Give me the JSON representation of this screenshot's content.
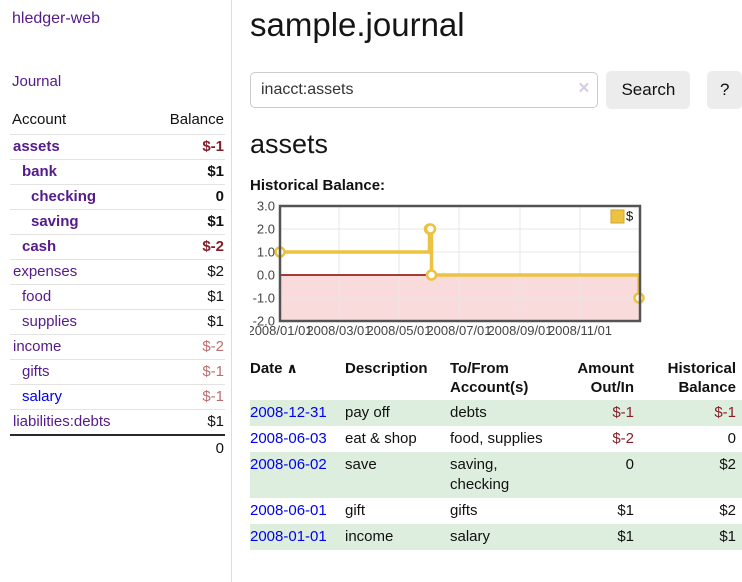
{
  "app": {
    "title": "hledger-web"
  },
  "sidebar": {
    "journal_link": "Journal",
    "accounts_header": {
      "account": "Account",
      "balance": "Balance"
    },
    "accounts": [
      {
        "label": "assets",
        "balance": "$-1",
        "depth": 1,
        "bold": true,
        "balance_style": "neg"
      },
      {
        "label": "bank",
        "balance": "$1",
        "depth": 2,
        "bold": true,
        "balance_style": ""
      },
      {
        "label": "checking",
        "balance": "0",
        "depth": 3,
        "bold": true,
        "balance_style": ""
      },
      {
        "label": "saving",
        "balance": "$1",
        "depth": 3,
        "bold": true,
        "balance_style": ""
      },
      {
        "label": "cash",
        "balance": "$-2",
        "depth": 2,
        "bold": true,
        "balance_style": "neg"
      },
      {
        "label": "expenses",
        "balance": "$2",
        "depth": 1,
        "bold": false,
        "balance_style": ""
      },
      {
        "label": "food",
        "balance": "$1",
        "depth": 2,
        "bold": false,
        "balance_style": ""
      },
      {
        "label": "supplies",
        "balance": "$1",
        "depth": 2,
        "bold": false,
        "balance_style": ""
      },
      {
        "label": "income",
        "balance": "$-2",
        "depth": 1,
        "bold": false,
        "balance_style": "neg-muted"
      },
      {
        "label": "gifts",
        "balance": "$-1",
        "depth": 2,
        "bold": false,
        "balance_style": "neg-muted"
      },
      {
        "label": "salary",
        "balance": "$-1",
        "depth": 2,
        "bold": false,
        "balance_style": "neg-muted",
        "link_style": "blue"
      },
      {
        "label": "liabilities:debts",
        "balance": "$1",
        "depth": 1,
        "bold": false,
        "balance_style": ""
      }
    ],
    "total": "0"
  },
  "main": {
    "title": "sample.journal",
    "search": {
      "value": "inacct:assets",
      "clear_icon": "×",
      "search_button": "Search",
      "help_button": "?"
    },
    "account_title": "assets",
    "chart_heading": "Historical Balance:"
  },
  "chart_data": {
    "type": "line",
    "step": true,
    "title": "Historical Balance",
    "series": [
      {
        "name": "$",
        "color": "#EDC240",
        "points": [
          [
            "2008-01-01",
            1
          ],
          [
            "2008-06-01",
            2
          ],
          [
            "2008-06-02",
            2
          ],
          [
            "2008-06-03",
            0
          ],
          [
            "2008-12-31",
            -1
          ]
        ]
      }
    ],
    "xlim": [
      "2008-01-01",
      "2009-01-01"
    ],
    "ylim": [
      -2,
      3
    ],
    "x_tick_dates": [
      "2008-01-01",
      "2008-03-01",
      "2008-05-01",
      "2008-07-01",
      "2008-09-01",
      "2008-11-01"
    ],
    "x_tick_labels": [
      "2008/01/01",
      "2008/03/01",
      "2008/05/01",
      "2008/07/01",
      "2008/09/01",
      "2008/11/01"
    ],
    "y_tick_values": [
      3,
      2,
      1,
      0,
      -1,
      -2
    ],
    "y_tick_labels": [
      "3.0",
      "2.0",
      "1.0",
      "0.0",
      "-1.0",
      "-2.0"
    ],
    "legend": {
      "label": "$",
      "position": "top-right"
    },
    "grid": true,
    "negative_region_color": "#f9dbdb",
    "zero_line_color": "#8b0000"
  },
  "register": {
    "headers": {
      "date": "Date",
      "description": "Description",
      "accounts": "To/From Account(s)",
      "amount": "Amount Out/In",
      "balance": "Historical Balance"
    },
    "sort_icon": "∧",
    "rows": [
      {
        "date": "2008-12-31",
        "description": "pay off",
        "accounts": "debts",
        "amount": "$-1",
        "balance": "$-1",
        "amount_neg": true,
        "balance_neg": true
      },
      {
        "date": "2008-06-03",
        "description": "eat & shop",
        "accounts": "food, supplies",
        "amount": "$-2",
        "balance": "0",
        "amount_neg": true,
        "balance_neg": false
      },
      {
        "date": "2008-06-02",
        "description": "save",
        "accounts": "saving, checking",
        "amount": "0",
        "balance": "$2",
        "amount_neg": false,
        "balance_neg": false
      },
      {
        "date": "2008-06-01",
        "description": "gift",
        "accounts": "gifts",
        "amount": "$1",
        "balance": "$2",
        "amount_neg": false,
        "balance_neg": false
      },
      {
        "date": "2008-01-01",
        "description": "income",
        "accounts": "salary",
        "amount": "$1",
        "balance": "$1",
        "amount_neg": false,
        "balance_neg": false
      }
    ]
  },
  "colors": {
    "purple": "#551A8B",
    "link_blue": "#0000EE",
    "neg": "#841f2a",
    "neg_muted": "#b96f6f",
    "row_green": "#deeede",
    "series_yellow": "#EDC240",
    "chart_border": "#545454",
    "zero_line": "#8b0000",
    "neg_region": "#f9dbdb",
    "grid_line": "#e7e7e7",
    "button_bg": "#ececec",
    "border_light": "#dddddd"
  }
}
